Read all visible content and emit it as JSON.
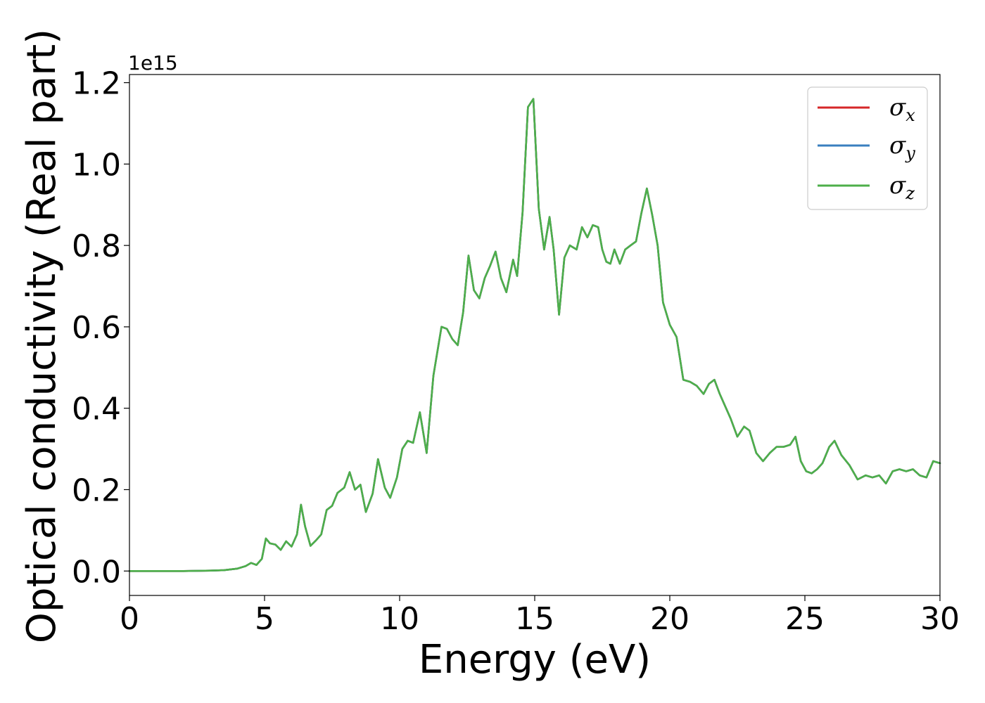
{
  "chart_data": {
    "type": "line",
    "xlabel": "Energy (eV)",
    "ylabel": "Optical conductivity (Real part)",
    "y_offset_label": "1e15",
    "xlim": [
      0,
      30
    ],
    "ylim": [
      -0.06,
      1.22
    ],
    "y_scale_factor": 1000000000000000.0,
    "x_ticks": [
      0,
      5,
      10,
      15,
      20,
      25,
      30
    ],
    "x_tick_labels": [
      "0",
      "5",
      "10",
      "15",
      "20",
      "25",
      "30"
    ],
    "y_ticks": [
      0.0,
      0.2,
      0.4,
      0.6,
      0.8,
      1.0,
      1.2
    ],
    "y_tick_labels": [
      "0.0",
      "0.2",
      "0.4",
      "0.6",
      "0.8",
      "1.0",
      "1.2"
    ],
    "grid": false,
    "legend_position": "top-right",
    "x": [
      0,
      1,
      2,
      3,
      3.5,
      4,
      4.3,
      4.5,
      4.7,
      4.9,
      5.05,
      5.2,
      5.4,
      5.6,
      5.8,
      6.0,
      6.2,
      6.35,
      6.5,
      6.7,
      6.9,
      7.1,
      7.3,
      7.5,
      7.7,
      7.95,
      8.15,
      8.35,
      8.55,
      8.75,
      9.0,
      9.2,
      9.45,
      9.65,
      9.9,
      10.1,
      10.3,
      10.5,
      10.75,
      11.0,
      11.25,
      11.55,
      11.75,
      11.95,
      12.15,
      12.35,
      12.55,
      12.75,
      12.95,
      13.15,
      13.35,
      13.55,
      13.75,
      13.95,
      14.2,
      14.35,
      14.55,
      14.75,
      14.95,
      15.15,
      15.35,
      15.55,
      15.7,
      15.9,
      16.1,
      16.3,
      16.55,
      16.75,
      16.95,
      17.15,
      17.35,
      17.5,
      17.65,
      17.8,
      17.95,
      18.15,
      18.35,
      18.55,
      18.75,
      18.95,
      19.15,
      19.35,
      19.55,
      19.75,
      20.0,
      20.25,
      20.5,
      20.75,
      21.0,
      21.25,
      21.45,
      21.65,
      21.85,
      22.05,
      22.25,
      22.5,
      22.75,
      22.95,
      23.2,
      23.45,
      23.7,
      23.95,
      24.2,
      24.45,
      24.65,
      24.85,
      25.05,
      25.25,
      25.45,
      25.65,
      25.9,
      26.1,
      26.35,
      26.65,
      26.95,
      27.25,
      27.5,
      27.75,
      28.0,
      28.25,
      28.5,
      28.75,
      29.0,
      29.25,
      29.5,
      29.75,
      30
    ],
    "y": [
      0.0,
      0.0,
      0.0,
      0.001,
      0.002,
      0.006,
      0.012,
      0.02,
      0.015,
      0.03,
      0.08,
      0.068,
      0.065,
      0.052,
      0.073,
      0.06,
      0.09,
      0.163,
      0.11,
      0.062,
      0.075,
      0.09,
      0.15,
      0.16,
      0.192,
      0.205,
      0.243,
      0.2,
      0.212,
      0.145,
      0.19,
      0.275,
      0.205,
      0.18,
      0.23,
      0.3,
      0.32,
      0.315,
      0.39,
      0.29,
      0.48,
      0.6,
      0.595,
      0.57,
      0.555,
      0.635,
      0.775,
      0.69,
      0.67,
      0.72,
      0.75,
      0.785,
      0.72,
      0.685,
      0.765,
      0.725,
      0.88,
      1.14,
      1.16,
      0.89,
      0.79,
      0.87,
      0.79,
      0.63,
      0.77,
      0.8,
      0.79,
      0.845,
      0.82,
      0.85,
      0.845,
      0.79,
      0.76,
      0.755,
      0.79,
      0.755,
      0.79,
      0.8,
      0.81,
      0.88,
      0.94,
      0.875,
      0.8,
      0.66,
      0.605,
      0.575,
      0.47,
      0.465,
      0.455,
      0.435,
      0.46,
      0.47,
      0.435,
      0.405,
      0.375,
      0.33,
      0.355,
      0.345,
      0.29,
      0.27,
      0.29,
      0.305,
      0.305,
      0.31,
      0.33,
      0.27,
      0.245,
      0.24,
      0.25,
      0.265,
      0.305,
      0.32,
      0.285,
      0.26,
      0.225,
      0.235,
      0.23,
      0.235,
      0.215,
      0.245,
      0.25,
      0.245,
      0.25,
      0.235,
      0.23,
      0.27,
      0.265
    ],
    "series": [
      {
        "name": "σx",
        "symbol": "σ",
        "sub": "x",
        "color": "#d62728"
      },
      {
        "name": "σy",
        "symbol": "σ",
        "sub": "y",
        "color": "#3a7fbf"
      },
      {
        "name": "σz",
        "symbol": "σ",
        "sub": "z",
        "color": "#4daf4a"
      }
    ]
  }
}
